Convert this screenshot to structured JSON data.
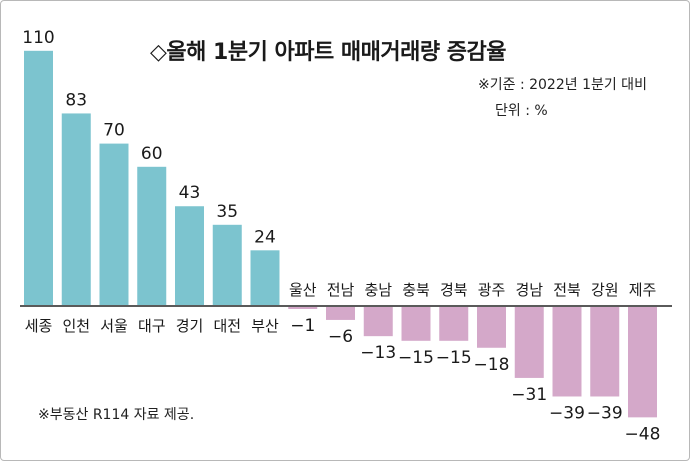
{
  "chart_data": {
    "type": "bar",
    "title": "◇올해 1분기 아파트 매매거래량 증감율",
    "notes": [
      "※기준 : 2022년 1분기 대비",
      "단위 : %"
    ],
    "source": "※부동산 R114 자료 제공.",
    "categories": [
      "세종",
      "인천",
      "서울",
      "대구",
      "경기",
      "대전",
      "부산",
      "울산",
      "전남",
      "충남",
      "충북",
      "경북",
      "광주",
      "경남",
      "전북",
      "강원",
      "제주"
    ],
    "values": [
      110,
      83,
      70,
      60,
      43,
      35,
      24,
      -1,
      -6,
      -13,
      -15,
      -15,
      -18,
      -31,
      -39,
      -39,
      -48
    ],
    "value_labels": [
      "110",
      "83",
      "70",
      "60",
      "43",
      "35",
      "24",
      "−1",
      "−6",
      "−13",
      "−15",
      "−15",
      "−18",
      "−31",
      "−39",
      "−39",
      "−48"
    ],
    "ylim": [
      -48,
      110
    ],
    "grid": false,
    "legend": "none",
    "colors": {
      "positive": "#7cc4cf",
      "negative": "#d4a8c9",
      "axis": "#5a5a5a"
    }
  }
}
